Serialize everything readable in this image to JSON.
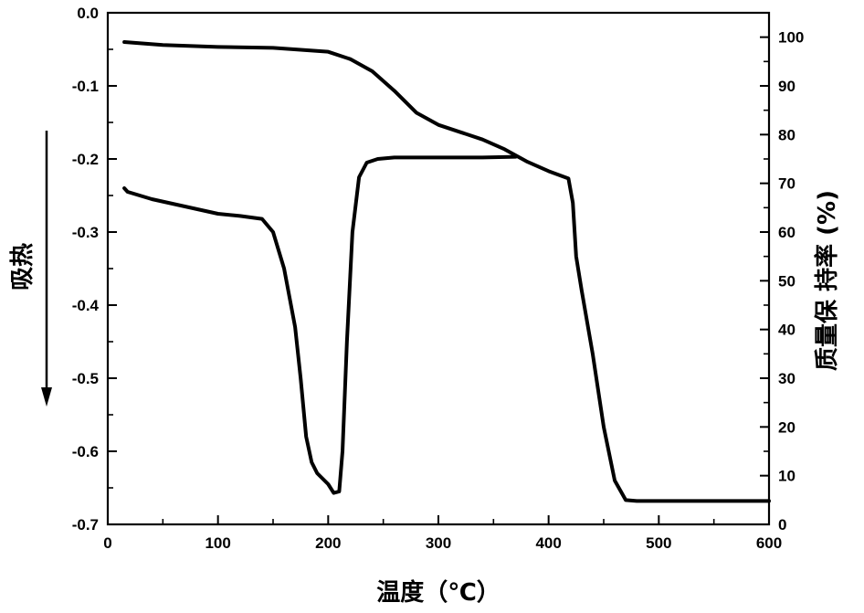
{
  "chart_data": {
    "type": "line",
    "title": "",
    "xlabel": "温度（℃）",
    "ylabel_left": "吸热",
    "ylabel_right": "质量保 持率 (%)",
    "xlim": [
      0,
      600
    ],
    "ylim_left": [
      -0.7,
      0.0
    ],
    "ylim_right": [
      0,
      105
    ],
    "x_ticks": [
      0,
      100,
      200,
      300,
      400,
      500,
      600
    ],
    "y_left_ticks": [
      0.0,
      -0.1,
      -0.2,
      -0.3,
      -0.4,
      -0.5,
      -0.6,
      -0.7
    ],
    "y_left_tick_labels": [
      "0.0",
      "-0.1",
      "-0.2",
      "-0.3",
      "-0.4",
      "-0.5",
      "-0.6",
      "-0.7"
    ],
    "y_right_ticks": [
      0,
      10,
      20,
      30,
      40,
      50,
      60,
      70,
      80,
      90,
      100
    ],
    "grid": false,
    "legend": "none",
    "annotations": [
      "arrow-down (endothermic)"
    ],
    "series": [
      {
        "axis": "left",
        "color": "#000000",
        "x": [
          15,
          18,
          40,
          70,
          100,
          120,
          140,
          150,
          160,
          170,
          175,
          180,
          185,
          190,
          200,
          205,
          210,
          213,
          217,
          222,
          228,
          235,
          245,
          260,
          300,
          340,
          370
        ],
        "y": [
          -0.24,
          -0.245,
          -0.255,
          -0.265,
          -0.275,
          -0.278,
          -0.282,
          -0.3,
          -0.35,
          -0.43,
          -0.5,
          -0.58,
          -0.615,
          -0.63,
          -0.645,
          -0.657,
          -0.655,
          -0.6,
          -0.45,
          -0.3,
          -0.225,
          -0.205,
          -0.2,
          -0.198,
          -0.198,
          -0.198,
          -0.197
        ]
      },
      {
        "axis": "right",
        "color": "#000000",
        "x": [
          15,
          50,
          100,
          150,
          200,
          220,
          240,
          260,
          280,
          300,
          320,
          340,
          360,
          380,
          400,
          418,
          422,
          425,
          430,
          440,
          450,
          460,
          470,
          480,
          500,
          550,
          600
        ],
        "y": [
          99.0,
          98.4,
          98.0,
          97.8,
          97.0,
          95.5,
          93.0,
          89.0,
          84.5,
          82.0,
          80.5,
          79.0,
          77.0,
          74.5,
          72.5,
          71.0,
          66.0,
          55.0,
          48.0,
          35.0,
          20.0,
          9.0,
          5.0,
          4.8,
          4.8,
          4.8,
          4.8
        ]
      }
    ]
  }
}
